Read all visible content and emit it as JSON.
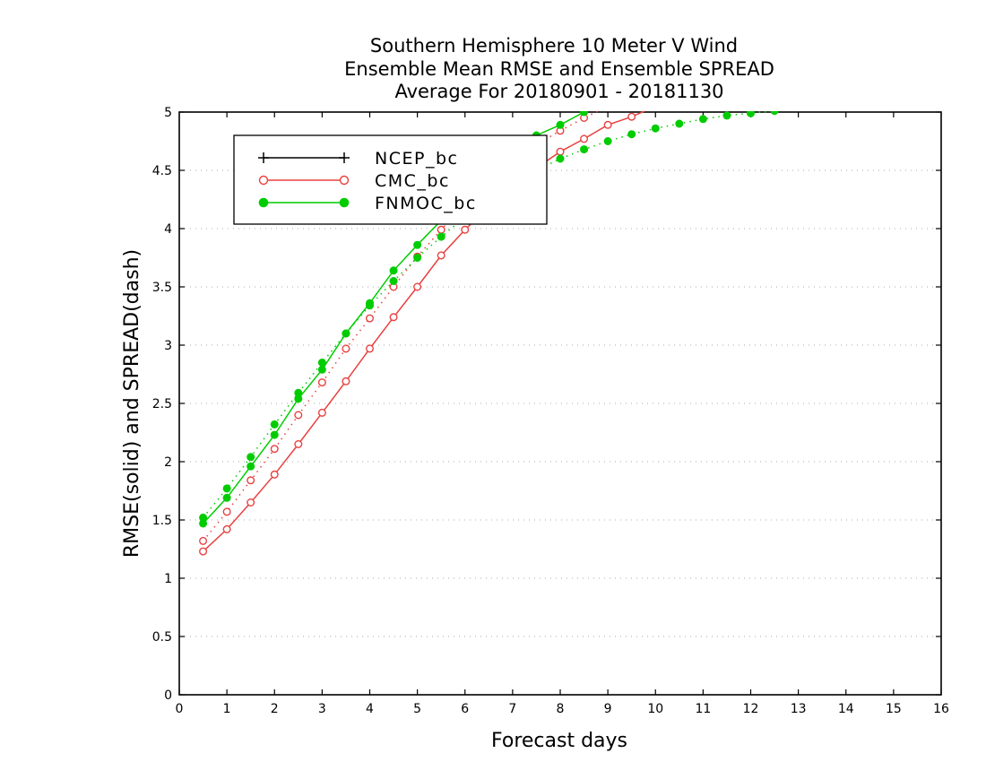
{
  "chart_data": {
    "type": "line",
    "title": [
      "Southern Hemisphere 10 Meter V Wind",
      "Ensemble Mean RMSE and Ensemble SPREAD",
      "Average For 20180901 - 20181130"
    ],
    "xlabel": "Forecast days",
    "ylabel": "RMSE(solid) and SPREAD(dash)",
    "xlim": [
      0,
      16
    ],
    "ylim": [
      0,
      5
    ],
    "xticks": [
      "0",
      "1",
      "2",
      "3",
      "4",
      "5",
      "6",
      "7",
      "8",
      "9",
      "10",
      "11",
      "12",
      "13",
      "14",
      "15",
      "16"
    ],
    "yticks": [
      "0",
      "0.5",
      "1",
      "1.5",
      "2",
      "2.5",
      "3",
      "3.5",
      "4",
      "4.5",
      "5"
    ],
    "grid": "horizontal dotted",
    "legend_position": "top-left",
    "legend": [
      "NCEP_bc",
      "CMC_bc",
      "FNMOC_bc"
    ],
    "series": [
      {
        "name": "CMC_bc",
        "metric": "RMSE",
        "style": "solid",
        "color": "#e8403f",
        "marker": "open-circle",
        "x": [
          0.5,
          1,
          1.5,
          2,
          2.5,
          3,
          3.5,
          4,
          4.5,
          5,
          5.5,
          6,
          6.5,
          7,
          7.5,
          8,
          8.5,
          9,
          9.5,
          10
        ],
        "y": [
          1.23,
          1.42,
          1.65,
          1.89,
          2.15,
          2.42,
          2.69,
          2.97,
          3.24,
          3.5,
          3.77,
          3.99,
          4.19,
          4.36,
          4.52,
          4.66,
          4.77,
          4.89,
          4.96,
          5.05
        ]
      },
      {
        "name": "CMC_bc",
        "metric": "SPREAD",
        "style": "dash",
        "color": "#e8403f",
        "marker": "open-circle",
        "x": [
          0.5,
          1,
          1.5,
          2,
          2.5,
          3,
          3.5,
          4,
          4.5,
          5,
          5.5,
          6,
          6.5,
          7,
          7.5,
          8,
          8.5,
          9
        ],
        "y": [
          1.32,
          1.57,
          1.84,
          2.11,
          2.4,
          2.68,
          2.97,
          3.23,
          3.5,
          3.76,
          3.99,
          4.22,
          4.42,
          4.58,
          4.72,
          4.84,
          4.95,
          5.05
        ]
      },
      {
        "name": "FNMOC_bc",
        "metric": "RMSE",
        "style": "solid",
        "color": "#00cc00",
        "marker": "filled-circle",
        "x": [
          0.5,
          1,
          1.5,
          2,
          2.5,
          3,
          3.5,
          4,
          4.5,
          5,
          5.5,
          6,
          6.5,
          7,
          7.5,
          8,
          8.5,
          9
        ],
        "y": [
          1.47,
          1.69,
          1.96,
          2.23,
          2.54,
          2.79,
          3.1,
          3.36,
          3.64,
          3.86,
          4.07,
          4.27,
          4.46,
          4.64,
          4.8,
          4.89,
          5.0,
          5.1
        ]
      },
      {
        "name": "FNMOC_bc",
        "metric": "SPREAD",
        "style": "dash",
        "color": "#00cc00",
        "marker": "filled-circle",
        "x": [
          0.5,
          1,
          1.5,
          2,
          2.5,
          3,
          3.5,
          4,
          4.5,
          5,
          5.5,
          6,
          6.5,
          7,
          7.5,
          8,
          8.5,
          9,
          9.5,
          10,
          10.5,
          11,
          11.5,
          12,
          12.5
        ],
        "y": [
          1.52,
          1.77,
          2.04,
          2.32,
          2.59,
          2.85,
          3.1,
          3.34,
          3.55,
          3.75,
          3.93,
          4.1,
          4.25,
          4.39,
          4.5,
          4.6,
          4.68,
          4.75,
          4.81,
          4.86,
          4.9,
          4.94,
          4.97,
          4.99,
          5.01
        ]
      }
    ]
  },
  "colors": {
    "NCEP_bc": "#000000",
    "CMC_bc": "#e8403f",
    "FNMOC_bc": "#00cc00",
    "grid": "#aaaaaa"
  }
}
